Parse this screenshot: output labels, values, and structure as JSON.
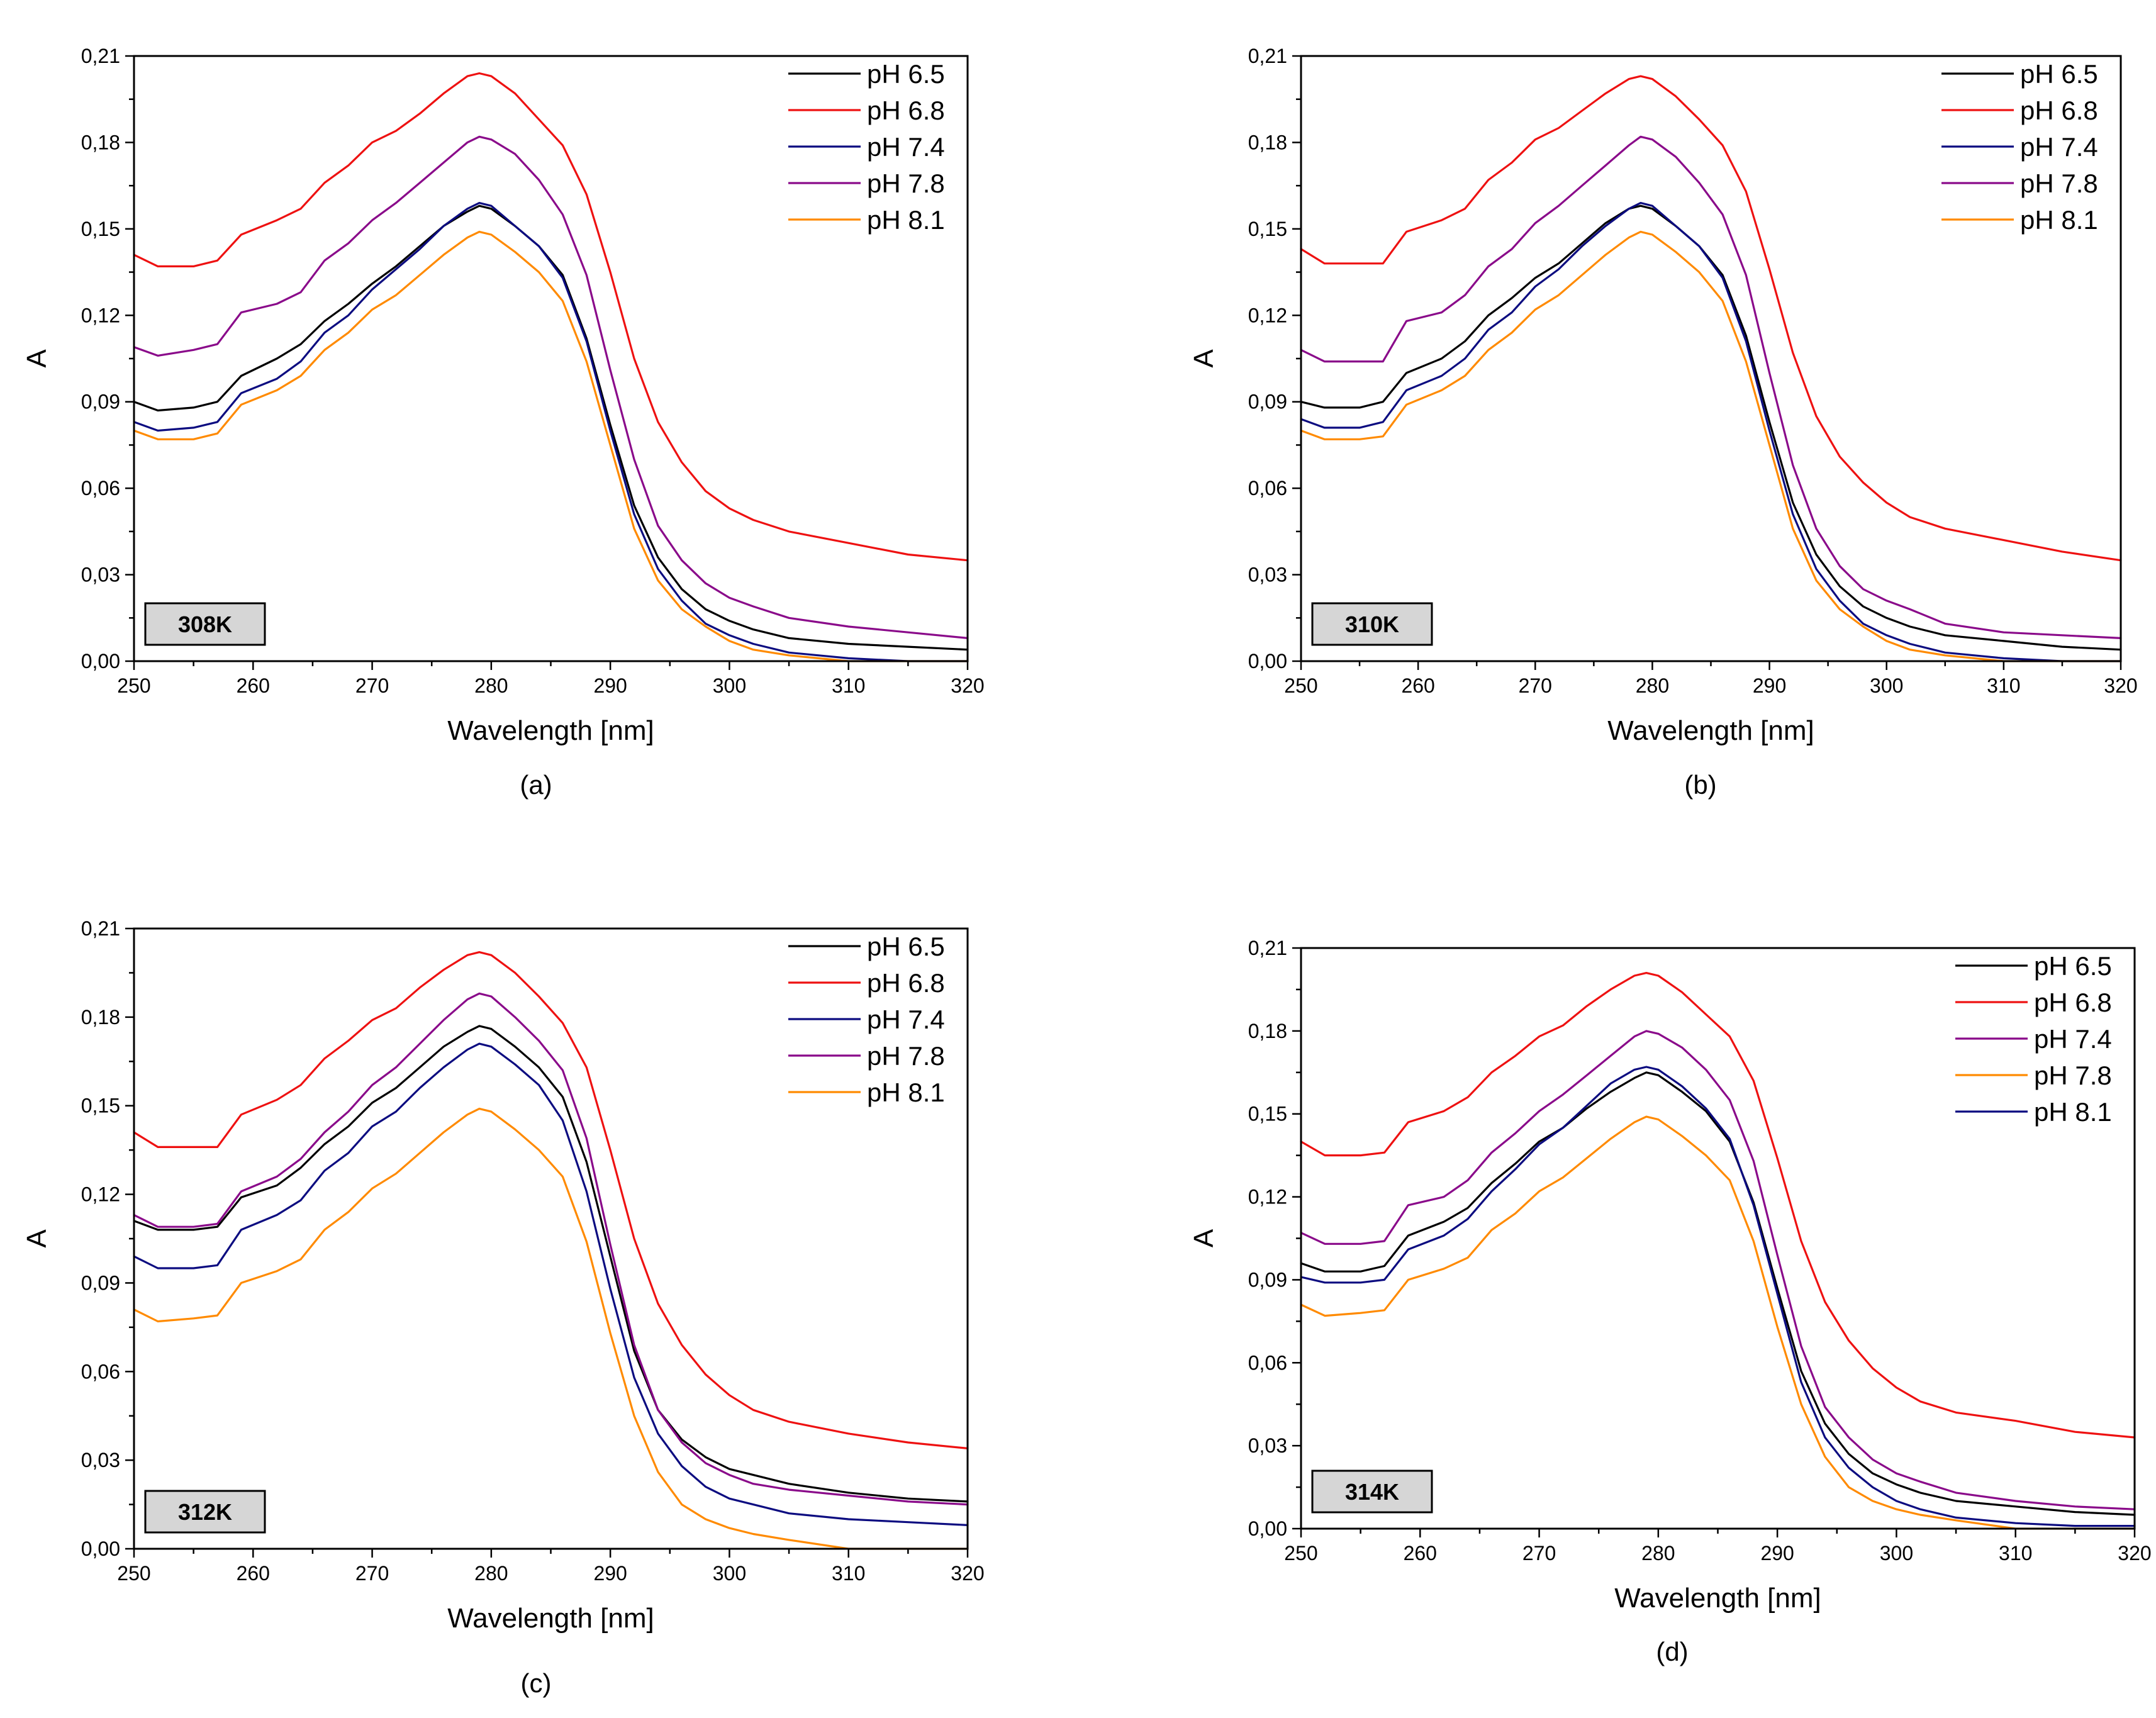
{
  "colors": {
    "black": "#000000",
    "red": "#ee1111",
    "navy": "#0c0c80",
    "purple": "#8a0a8a",
    "orange": "#ff8a00",
    "badge_fill": "#d6d6d6"
  },
  "chart_data": [
    {
      "type": "line",
      "panel_label": "(a)",
      "temperature": "308K",
      "xlabel": "Wavelength [nm]",
      "ylabel": "A",
      "xlim": [
        250,
        320
      ],
      "ylim": [
        0,
        0.21
      ],
      "x_ticks": [
        "250",
        "260",
        "270",
        "280",
        "290",
        "300",
        "310",
        "320"
      ],
      "y_ticks": [
        "0,00",
        "0,03",
        "0,06",
        "0,09",
        "0,12",
        "0,15",
        "0,18",
        "0,21"
      ],
      "legend_position": "top-right",
      "x": [
        250,
        252,
        255,
        257,
        259,
        262,
        264,
        266,
        268,
        270,
        272,
        274,
        276,
        278,
        279,
        280,
        282,
        284,
        286,
        288,
        290,
        292,
        294,
        296,
        298,
        300,
        302,
        305,
        310,
        315,
        320
      ],
      "series": [
        {
          "name": "pH 6.5",
          "color": "black",
          "values": [
            0.09,
            0.087,
            0.088,
            0.09,
            0.099,
            0.105,
            0.11,
            0.118,
            0.124,
            0.131,
            0.137,
            0.144,
            0.151,
            0.156,
            0.158,
            0.157,
            0.151,
            0.144,
            0.134,
            0.112,
            0.082,
            0.054,
            0.036,
            0.025,
            0.018,
            0.014,
            0.011,
            0.008,
            0.006,
            0.005,
            0.004
          ]
        },
        {
          "name": "pH 6.8",
          "color": "red",
          "values": [
            0.141,
            0.137,
            0.137,
            0.139,
            0.148,
            0.153,
            0.157,
            0.166,
            0.172,
            0.18,
            0.184,
            0.19,
            0.197,
            0.203,
            0.204,
            0.203,
            0.197,
            0.188,
            0.179,
            0.162,
            0.135,
            0.105,
            0.083,
            0.069,
            0.059,
            0.053,
            0.049,
            0.045,
            0.041,
            0.037,
            0.035
          ]
        },
        {
          "name": "pH 7.4",
          "color": "navy",
          "values": [
            0.083,
            0.08,
            0.081,
            0.083,
            0.093,
            0.098,
            0.104,
            0.114,
            0.12,
            0.129,
            0.136,
            0.143,
            0.151,
            0.157,
            0.159,
            0.158,
            0.151,
            0.144,
            0.133,
            0.111,
            0.08,
            0.051,
            0.032,
            0.021,
            0.013,
            0.009,
            0.006,
            0.003,
            0.001,
            0.0,
            0.0
          ]
        },
        {
          "name": "pH 7.8",
          "color": "purple",
          "values": [
            0.109,
            0.106,
            0.108,
            0.11,
            0.121,
            0.124,
            0.128,
            0.139,
            0.145,
            0.153,
            0.159,
            0.166,
            0.173,
            0.18,
            0.182,
            0.181,
            0.176,
            0.167,
            0.155,
            0.134,
            0.101,
            0.07,
            0.047,
            0.035,
            0.027,
            0.022,
            0.019,
            0.015,
            0.012,
            0.01,
            0.008
          ]
        },
        {
          "name": "pH 8.1",
          "color": "orange",
          "values": [
            0.08,
            0.077,
            0.077,
            0.079,
            0.089,
            0.094,
            0.099,
            0.108,
            0.114,
            0.122,
            0.127,
            0.134,
            0.141,
            0.147,
            0.149,
            0.148,
            0.142,
            0.135,
            0.125,
            0.104,
            0.075,
            0.046,
            0.028,
            0.018,
            0.012,
            0.007,
            0.004,
            0.002,
            0.0,
            0.0,
            0.0
          ]
        }
      ]
    },
    {
      "type": "line",
      "panel_label": "(b)",
      "temperature": "310K",
      "xlabel": "Wavelength [nm]",
      "ylabel": "A",
      "xlim": [
        250,
        320
      ],
      "ylim": [
        0,
        0.21
      ],
      "x_ticks": [
        "250",
        "260",
        "270",
        "280",
        "290",
        "300",
        "310",
        "320"
      ],
      "y_ticks": [
        "0,00",
        "0,03",
        "0,06",
        "0,09",
        "0,12",
        "0,15",
        "0,18",
        "0,21"
      ],
      "legend_position": "top-right",
      "x": [
        250,
        252,
        255,
        257,
        259,
        262,
        264,
        266,
        268,
        270,
        272,
        274,
        276,
        278,
        279,
        280,
        282,
        284,
        286,
        288,
        290,
        292,
        294,
        296,
        298,
        300,
        302,
        305,
        310,
        315,
        320
      ],
      "series": [
        {
          "name": "pH 6.5",
          "color": "black",
          "values": [
            0.09,
            0.088,
            0.088,
            0.09,
            0.1,
            0.105,
            0.111,
            0.12,
            0.126,
            0.133,
            0.138,
            0.145,
            0.152,
            0.157,
            0.158,
            0.157,
            0.151,
            0.144,
            0.134,
            0.113,
            0.083,
            0.055,
            0.037,
            0.026,
            0.019,
            0.015,
            0.012,
            0.009,
            0.007,
            0.005,
            0.004
          ]
        },
        {
          "name": "pH 6.8",
          "color": "red",
          "values": [
            0.143,
            0.138,
            0.138,
            0.138,
            0.149,
            0.153,
            0.157,
            0.167,
            0.173,
            0.181,
            0.185,
            0.191,
            0.197,
            0.202,
            0.203,
            0.202,
            0.196,
            0.188,
            0.179,
            0.163,
            0.136,
            0.107,
            0.085,
            0.071,
            0.062,
            0.055,
            0.05,
            0.046,
            0.042,
            0.038,
            0.035
          ]
        },
        {
          "name": "pH 7.4",
          "color": "navy",
          "values": [
            0.084,
            0.081,
            0.081,
            0.083,
            0.094,
            0.099,
            0.105,
            0.115,
            0.121,
            0.13,
            0.136,
            0.144,
            0.151,
            0.157,
            0.159,
            0.158,
            0.151,
            0.144,
            0.133,
            0.111,
            0.08,
            0.051,
            0.032,
            0.021,
            0.013,
            0.009,
            0.006,
            0.003,
            0.001,
            0.0,
            0.0
          ]
        },
        {
          "name": "pH 7.8",
          "color": "purple",
          "values": [
            0.108,
            0.104,
            0.104,
            0.104,
            0.118,
            0.121,
            0.127,
            0.137,
            0.143,
            0.152,
            0.158,
            0.165,
            0.172,
            0.179,
            0.182,
            0.181,
            0.175,
            0.166,
            0.155,
            0.134,
            0.1,
            0.068,
            0.046,
            0.033,
            0.025,
            0.021,
            0.018,
            0.013,
            0.01,
            0.009,
            0.008
          ]
        },
        {
          "name": "pH 8.1",
          "color": "orange",
          "values": [
            0.08,
            0.077,
            0.077,
            0.078,
            0.089,
            0.094,
            0.099,
            0.108,
            0.114,
            0.122,
            0.127,
            0.134,
            0.141,
            0.147,
            0.149,
            0.148,
            0.142,
            0.135,
            0.125,
            0.104,
            0.075,
            0.046,
            0.028,
            0.018,
            0.012,
            0.007,
            0.004,
            0.002,
            0.0,
            0.0,
            0.0
          ]
        }
      ]
    },
    {
      "type": "line",
      "panel_label": "(c)",
      "temperature": "312K",
      "xlabel": "Wavelength [nm]",
      "ylabel": "A",
      "xlim": [
        250,
        320
      ],
      "ylim": [
        0,
        0.21
      ],
      "x_ticks": [
        "250",
        "260",
        "270",
        "280",
        "290",
        "300",
        "310",
        "320"
      ],
      "y_ticks": [
        "0,00",
        "0,03",
        "0,06",
        "0,09",
        "0,12",
        "0,15",
        "0,18",
        "0,21"
      ],
      "legend_position": "top-right",
      "x": [
        250,
        252,
        255,
        257,
        259,
        262,
        264,
        266,
        268,
        270,
        272,
        274,
        276,
        278,
        279,
        280,
        282,
        284,
        286,
        288,
        290,
        292,
        294,
        296,
        298,
        300,
        302,
        305,
        310,
        315,
        320
      ],
      "series": [
        {
          "name": "pH 6.5",
          "color": "black",
          "values": [
            0.111,
            0.108,
            0.108,
            0.109,
            0.119,
            0.123,
            0.129,
            0.137,
            0.143,
            0.151,
            0.156,
            0.163,
            0.17,
            0.175,
            0.177,
            0.176,
            0.17,
            0.163,
            0.153,
            0.131,
            0.099,
            0.067,
            0.047,
            0.037,
            0.031,
            0.027,
            0.025,
            0.022,
            0.019,
            0.017,
            0.016
          ]
        },
        {
          "name": "pH 6.8",
          "color": "red",
          "values": [
            0.141,
            0.136,
            0.136,
            0.136,
            0.147,
            0.152,
            0.157,
            0.166,
            0.172,
            0.179,
            0.183,
            0.19,
            0.196,
            0.201,
            0.202,
            0.201,
            0.195,
            0.187,
            0.178,
            0.163,
            0.135,
            0.105,
            0.083,
            0.069,
            0.059,
            0.052,
            0.047,
            0.043,
            0.039,
            0.036,
            0.034
          ]
        },
        {
          "name": "pH 7.4",
          "color": "navy",
          "values": [
            0.099,
            0.095,
            0.095,
            0.096,
            0.108,
            0.113,
            0.118,
            0.128,
            0.134,
            0.143,
            0.148,
            0.156,
            0.163,
            0.169,
            0.171,
            0.17,
            0.164,
            0.157,
            0.145,
            0.121,
            0.088,
            0.058,
            0.039,
            0.028,
            0.021,
            0.017,
            0.015,
            0.012,
            0.01,
            0.009,
            0.008
          ]
        },
        {
          "name": "pH 7.8",
          "color": "purple",
          "values": [
            0.113,
            0.109,
            0.109,
            0.11,
            0.121,
            0.126,
            0.132,
            0.141,
            0.148,
            0.157,
            0.163,
            0.171,
            0.179,
            0.186,
            0.188,
            0.187,
            0.18,
            0.172,
            0.162,
            0.139,
            0.103,
            0.069,
            0.047,
            0.036,
            0.029,
            0.025,
            0.022,
            0.02,
            0.018,
            0.016,
            0.015
          ]
        },
        {
          "name": "pH 8.1",
          "color": "orange",
          "values": [
            0.081,
            0.077,
            0.078,
            0.079,
            0.09,
            0.094,
            0.098,
            0.108,
            0.114,
            0.122,
            0.127,
            0.134,
            0.141,
            0.147,
            0.149,
            0.148,
            0.142,
            0.135,
            0.126,
            0.104,
            0.073,
            0.045,
            0.026,
            0.015,
            0.01,
            0.007,
            0.005,
            0.003,
            0.0,
            0.0,
            0.0
          ]
        }
      ]
    },
    {
      "type": "line",
      "panel_label": "(d)",
      "temperature": "314K",
      "xlabel": "Wavelength [nm]",
      "ylabel": "A",
      "xlim": [
        250,
        320
      ],
      "ylim": [
        0,
        0.21
      ],
      "x_ticks": [
        "250",
        "260",
        "270",
        "280",
        "290",
        "300",
        "310",
        "320"
      ],
      "y_ticks": [
        "0,00",
        "0,03",
        "0,06",
        "0,09",
        "0,12",
        "0,15",
        "0,18",
        "0,21"
      ],
      "legend_position": "top-right",
      "x": [
        250,
        252,
        255,
        257,
        259,
        262,
        264,
        266,
        268,
        270,
        272,
        274,
        276,
        278,
        279,
        280,
        282,
        284,
        286,
        288,
        290,
        292,
        294,
        296,
        298,
        300,
        302,
        305,
        310,
        315,
        320
      ],
      "series": [
        {
          "name": "pH 6.5",
          "color": "black",
          "values": [
            0.096,
            0.093,
            0.093,
            0.095,
            0.106,
            0.111,
            0.116,
            0.125,
            0.132,
            0.14,
            0.145,
            0.152,
            0.158,
            0.163,
            0.165,
            0.164,
            0.158,
            0.151,
            0.14,
            0.118,
            0.087,
            0.057,
            0.038,
            0.027,
            0.02,
            0.016,
            0.013,
            0.01,
            0.008,
            0.006,
            0.005
          ]
        },
        {
          "name": "pH 6.8",
          "color": "red",
          "values": [
            0.14,
            0.135,
            0.135,
            0.136,
            0.147,
            0.151,
            0.156,
            0.165,
            0.171,
            0.178,
            0.182,
            0.189,
            0.195,
            0.2,
            0.201,
            0.2,
            0.194,
            0.186,
            0.178,
            0.162,
            0.134,
            0.104,
            0.082,
            0.068,
            0.058,
            0.051,
            0.046,
            0.042,
            0.039,
            0.035,
            0.033
          ]
        },
        {
          "name": "pH 7.4",
          "color": "purple",
          "values": [
            0.107,
            0.103,
            0.103,
            0.104,
            0.117,
            0.12,
            0.126,
            0.136,
            0.143,
            0.151,
            0.157,
            0.164,
            0.171,
            0.178,
            0.18,
            0.179,
            0.174,
            0.166,
            0.155,
            0.133,
            0.099,
            0.066,
            0.044,
            0.033,
            0.025,
            0.02,
            0.017,
            0.013,
            0.01,
            0.008,
            0.007
          ]
        },
        {
          "name": "pH 7.8",
          "color": "orange",
          "values": [
            0.081,
            0.077,
            0.078,
            0.079,
            0.09,
            0.094,
            0.098,
            0.108,
            0.114,
            0.122,
            0.127,
            0.134,
            0.141,
            0.147,
            0.149,
            0.148,
            0.142,
            0.135,
            0.126,
            0.104,
            0.073,
            0.045,
            0.026,
            0.015,
            0.01,
            0.007,
            0.005,
            0.003,
            0.0,
            0.0,
            0.0
          ]
        },
        {
          "name": "pH 8.1",
          "color": "navy",
          "values": [
            0.091,
            0.089,
            0.089,
            0.09,
            0.101,
            0.106,
            0.112,
            0.122,
            0.13,
            0.139,
            0.145,
            0.153,
            0.161,
            0.166,
            0.167,
            0.166,
            0.16,
            0.152,
            0.141,
            0.117,
            0.085,
            0.053,
            0.033,
            0.022,
            0.015,
            0.01,
            0.007,
            0.004,
            0.002,
            0.001,
            0.001
          ]
        }
      ]
    }
  ]
}
